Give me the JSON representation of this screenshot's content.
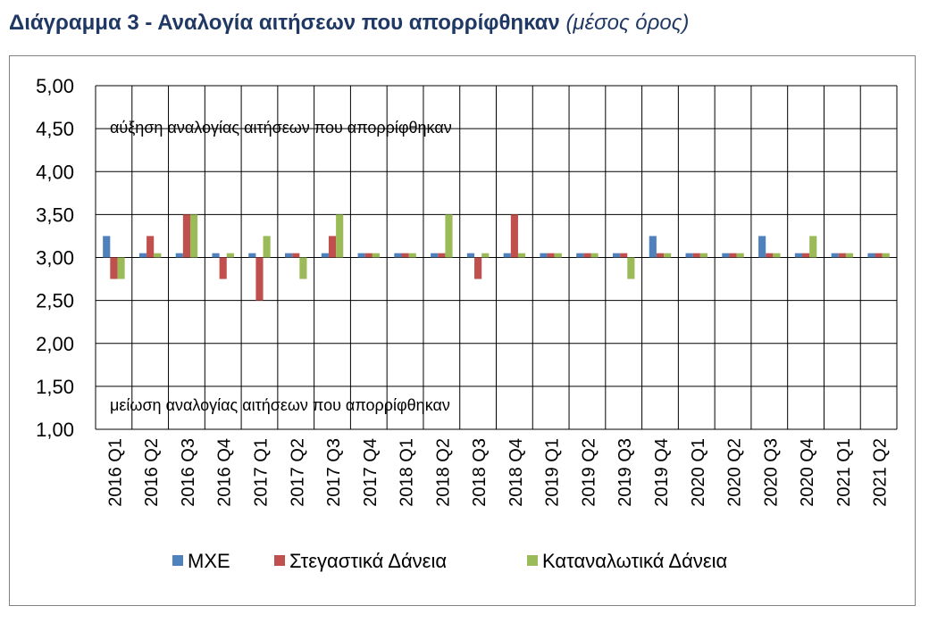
{
  "title": "Διάγραμμα 3 - Αναλογία αιτήσεων που απορρίφθηκαν",
  "subtitle": "(μέσος όρος)",
  "chart_data": {
    "type": "bar",
    "categories": [
      "2016 Q1",
      "2016 Q2",
      "2016 Q3",
      "2016 Q4",
      "2017 Q1",
      "2017 Q2",
      "2017 Q3",
      "2017 Q4",
      "2018 Q1",
      "2018 Q2",
      "2018 Q3",
      "2018 Q4",
      "2019 Q1",
      "2019 Q2",
      "2019 Q3",
      "2019 Q4",
      "2020 Q1",
      "2020 Q2",
      "2020 Q3",
      "2020 Q4",
      "2021 Q1",
      "2021 Q2"
    ],
    "baseline": 3.0,
    "series": [
      {
        "name": "ΜΧΕ",
        "color": "#4f81bd",
        "values": [
          3.25,
          3.05,
          3.05,
          3.05,
          3.05,
          3.05,
          3.05,
          3.05,
          3.05,
          3.05,
          3.05,
          3.05,
          3.05,
          3.05,
          3.05,
          3.25,
          3.05,
          3.05,
          3.25,
          3.05,
          3.05,
          3.05
        ]
      },
      {
        "name": "Στεγαστικά Δάνεια",
        "color": "#c0504d",
        "values": [
          2.75,
          3.25,
          3.5,
          2.75,
          2.5,
          3.05,
          3.25,
          3.05,
          3.05,
          3.05,
          2.75,
          3.5,
          3.05,
          3.05,
          3.05,
          3.05,
          3.05,
          3.05,
          3.05,
          3.05,
          3.05,
          3.05
        ]
      },
      {
        "name": "Καταναλωτικά Δάνεια",
        "color": "#9bbb59",
        "values": [
          2.75,
          3.05,
          3.5,
          3.05,
          3.25,
          2.75,
          3.5,
          3.05,
          3.05,
          3.5,
          3.05,
          3.05,
          3.05,
          3.05,
          2.75,
          3.05,
          3.05,
          3.05,
          3.05,
          3.25,
          3.05,
          3.05
        ]
      }
    ],
    "ylim": [
      1.0,
      5.0
    ],
    "yticks": [
      "1,00",
      "1,50",
      "2,00",
      "2,50",
      "3,00",
      "3,50",
      "4,00",
      "4,50",
      "5,00"
    ],
    "grid": true,
    "legend_position": "bottom",
    "annotations": {
      "upper": "αύξηση αναλογίας αιτήσεων που απορρίφθηκαν",
      "lower": "μείωση αναλογίας αιτήσεων που απορρίφθηκαν"
    }
  }
}
